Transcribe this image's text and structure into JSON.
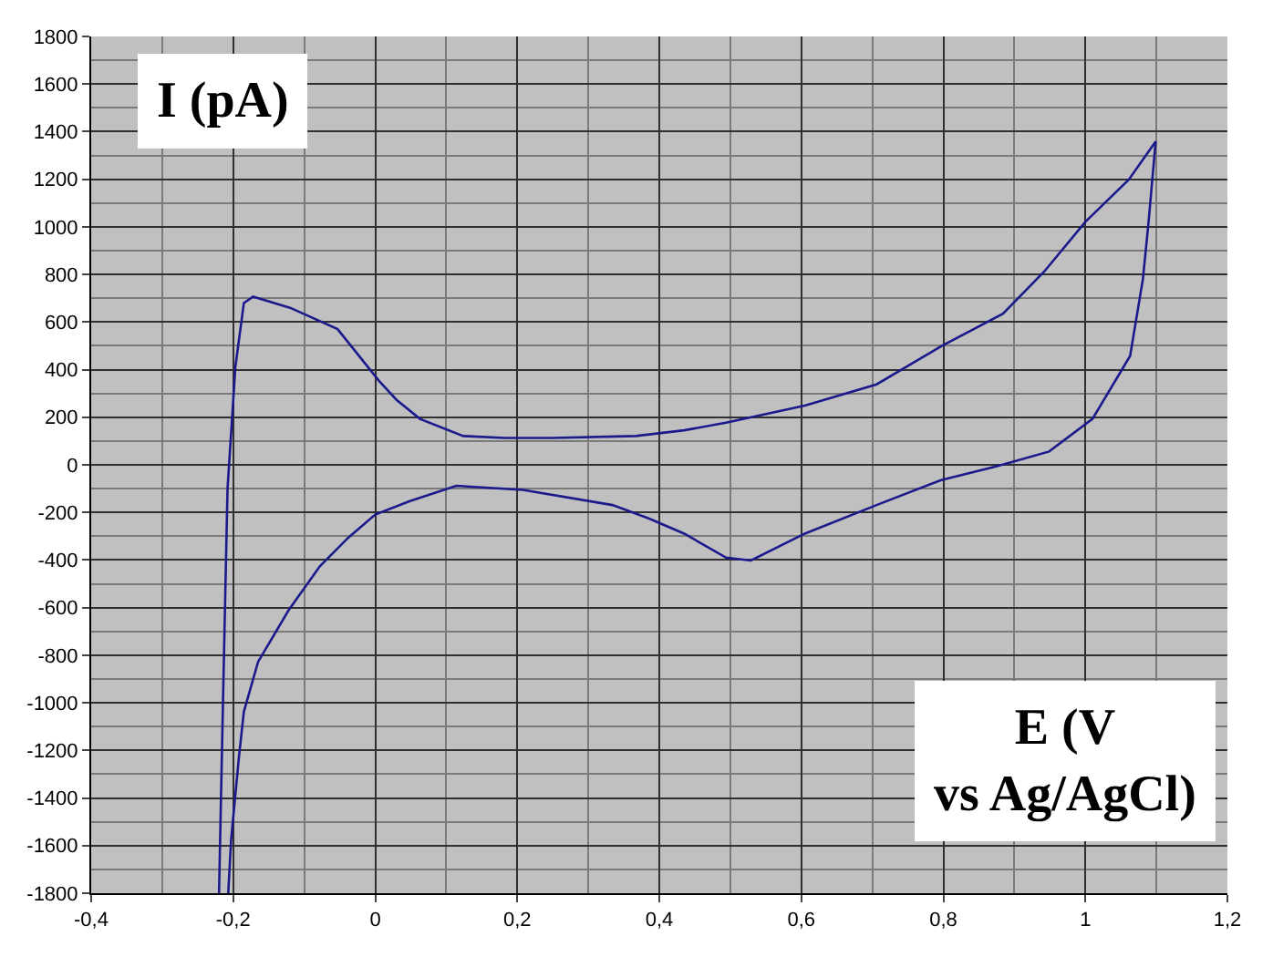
{
  "chart_data": {
    "type": "line",
    "xlabel": "E (V vs Ag/AgCl)",
    "ylabel": "I (pA)",
    "xlim": [
      -0.4,
      1.2
    ],
    "ylim": [
      -1800,
      1800
    ],
    "xticks": [
      {
        "value": -0.4,
        "label": "-0,4"
      },
      {
        "value": -0.2,
        "label": "-0,2"
      },
      0,
      {
        "value": 0.2,
        "label": "0,2"
      },
      {
        "value": 0.4,
        "label": "0,4"
      },
      {
        "value": 0.6,
        "label": "0,6"
      },
      {
        "value": 0.8,
        "label": "0,8"
      },
      1,
      {
        "value": 1.2,
        "label": "1,2"
      }
    ],
    "yticks": [
      -1800,
      -1600,
      -1400,
      -1200,
      -1000,
      -800,
      -600,
      -400,
      -200,
      0,
      200,
      400,
      600,
      800,
      1000,
      1200,
      1400,
      1600,
      1800
    ],
    "grid": true,
    "marker": "none",
    "line_style": "solid",
    "series": [
      {
        "color": "#1a1a8c",
        "x": [
          -0.22,
          -0.213,
          -0.208,
          -0.197,
          -0.185,
          -0.172,
          -0.12,
          -0.053,
          0.005,
          0.03,
          0.063,
          0.124,
          0.182,
          0.25,
          0.367,
          0.435,
          0.494,
          0.605,
          0.706,
          0.797,
          0.884,
          0.942,
          1.0,
          1.061,
          1.099,
          1.089,
          1.081,
          1.063,
          1.01,
          0.949,
          0.873,
          0.797,
          0.706,
          0.605,
          0.529,
          0.494,
          0.435,
          0.385,
          0.334,
          0.208,
          0.114,
          0.048,
          0,
          -0.038,
          -0.078,
          -0.122,
          -0.165,
          -0.185,
          -0.192,
          -0.203,
          -0.207
        ],
        "values": [
          -1800,
          -800,
          -100,
          410,
          680,
          707,
          660,
          570,
          354,
          273,
          193,
          121,
          113,
          113,
          121,
          145,
          177,
          249,
          338,
          498,
          635,
          812,
          1021,
          1198,
          1359,
          1021,
          780,
          458,
          193,
          56,
          -8,
          -64,
          -169,
          -289,
          -402,
          -390,
          -289,
          -225,
          -169,
          -105,
          -88,
          -153,
          -209,
          -306,
          -426,
          -611,
          -828,
          -1037,
          -1230,
          -1576,
          -1800
        ]
      }
    ]
  }
}
